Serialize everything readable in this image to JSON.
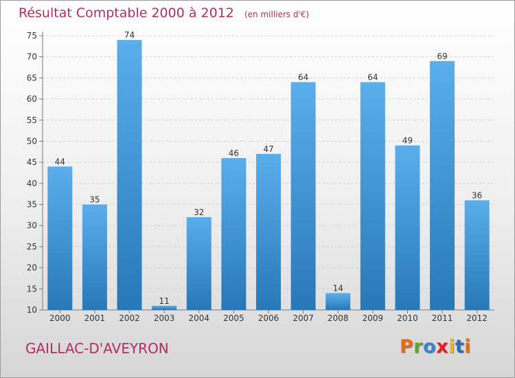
{
  "header": {
    "title": "Résultat Comptable 2000 à 2012",
    "subtitle": "(en milliers d'€)"
  },
  "footer": {
    "place": "GAILLAC-D'AVEYRON",
    "logo": "Proxiti"
  },
  "colors": {
    "title": "#b22d63",
    "bar_light": "#5aaeea",
    "bar_dark": "#2878b8",
    "logo_letters": [
      "#e36c1b",
      "#5aa637",
      "#3a84c9",
      "#e31e24",
      "#f2b51b",
      "#2a6cb5",
      "#e36c1b"
    ]
  },
  "chart_data": {
    "type": "bar",
    "categories": [
      "2000",
      "2001",
      "2002",
      "2003",
      "2004",
      "2005",
      "2006",
      "2007",
      "2008",
      "2009",
      "2010",
      "2011",
      "2012"
    ],
    "values": [
      44,
      35,
      74,
      11,
      32,
      46,
      47,
      64,
      14,
      64,
      49,
      69,
      36
    ],
    "ylim": [
      10,
      75
    ],
    "yticks": [
      10,
      15,
      20,
      25,
      30,
      35,
      40,
      45,
      50,
      55,
      60,
      65,
      70,
      75
    ],
    "grid": true,
    "data_labels": true
  }
}
